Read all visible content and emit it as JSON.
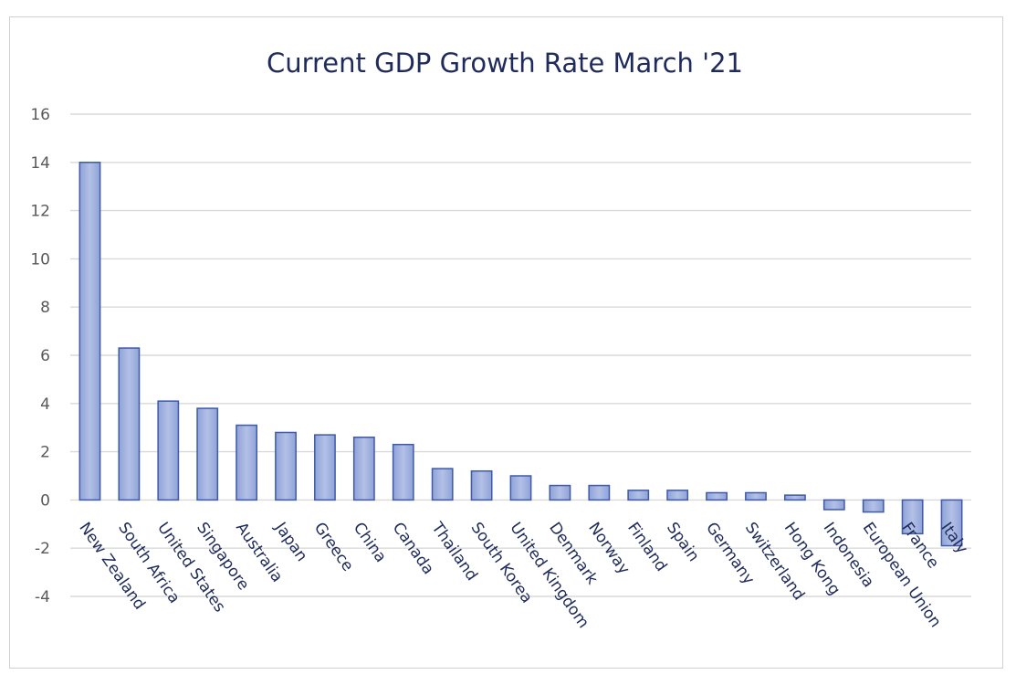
{
  "chart_data": {
    "type": "bar",
    "title": "Current GDP Growth Rate March '21",
    "xlabel": "",
    "ylabel": "",
    "ylim": [
      -4,
      16
    ],
    "yticks": [
      16,
      14,
      12,
      10,
      8,
      6,
      4,
      2,
      0,
      -2,
      -4
    ],
    "grid": true,
    "legend": "none",
    "categories": [
      "New Zealand",
      "South Africa",
      "United States",
      "Singapore",
      "Australia",
      "Japan",
      "Greece",
      "China",
      "Canada",
      "Thailand",
      "South Korea",
      "United Kingdom",
      "Denmark",
      "Norway",
      "Finland",
      "Spain",
      "Germany",
      "Switzerland",
      "Hong Kong",
      "Indonesia",
      "European Union",
      "France",
      "Italy"
    ],
    "values": [
      14.0,
      6.3,
      4.1,
      3.8,
      3.1,
      2.8,
      2.7,
      2.6,
      2.3,
      1.3,
      1.2,
      1.0,
      0.6,
      0.6,
      0.4,
      0.4,
      0.3,
      0.3,
      0.2,
      -0.4,
      -0.5,
      -1.4,
      -1.9
    ],
    "colors": {
      "bar_fill_top": "#8fa3d8",
      "bar_fill_bottom": "#c9d3ef",
      "bar_stroke": "#3e5aa8",
      "title": "#1f2b5c",
      "grid": "#d9d9d9",
      "tick": "#595959"
    }
  }
}
